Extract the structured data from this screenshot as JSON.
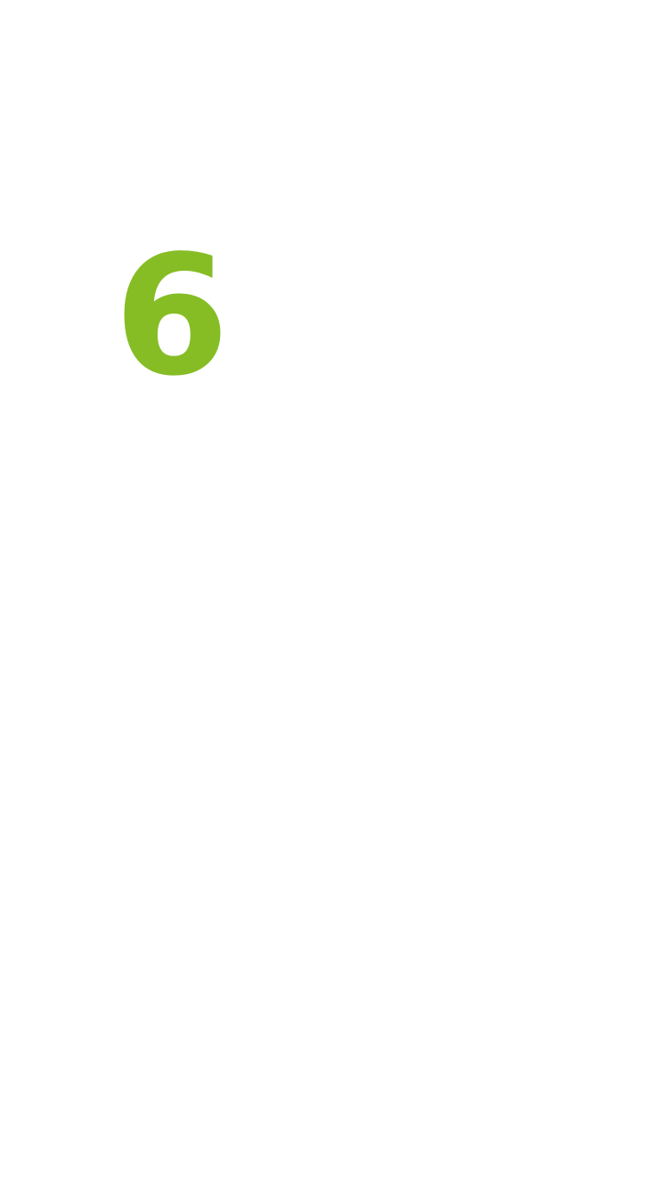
{
  "main": {
    "number": "6",
    "number_color": "#86bd25",
    "background_color": "#ffffff"
  }
}
